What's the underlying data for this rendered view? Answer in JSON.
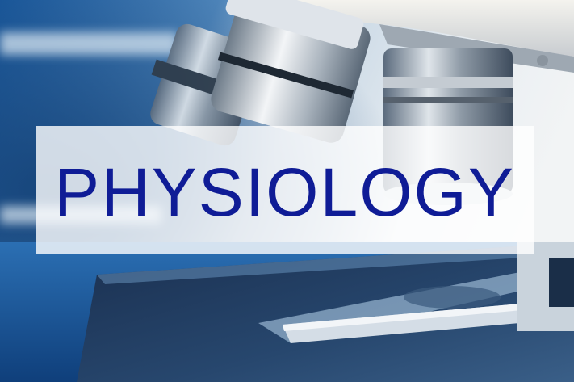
{
  "title": "PHYSIOLOGY",
  "title_color": "#0f1c96",
  "band_color": "#ffffff",
  "scene": {
    "subject": "microscope-objectives-and-stage",
    "dominant_color": "#1c5d9f",
    "highlight_color": "#dfe7ef"
  }
}
